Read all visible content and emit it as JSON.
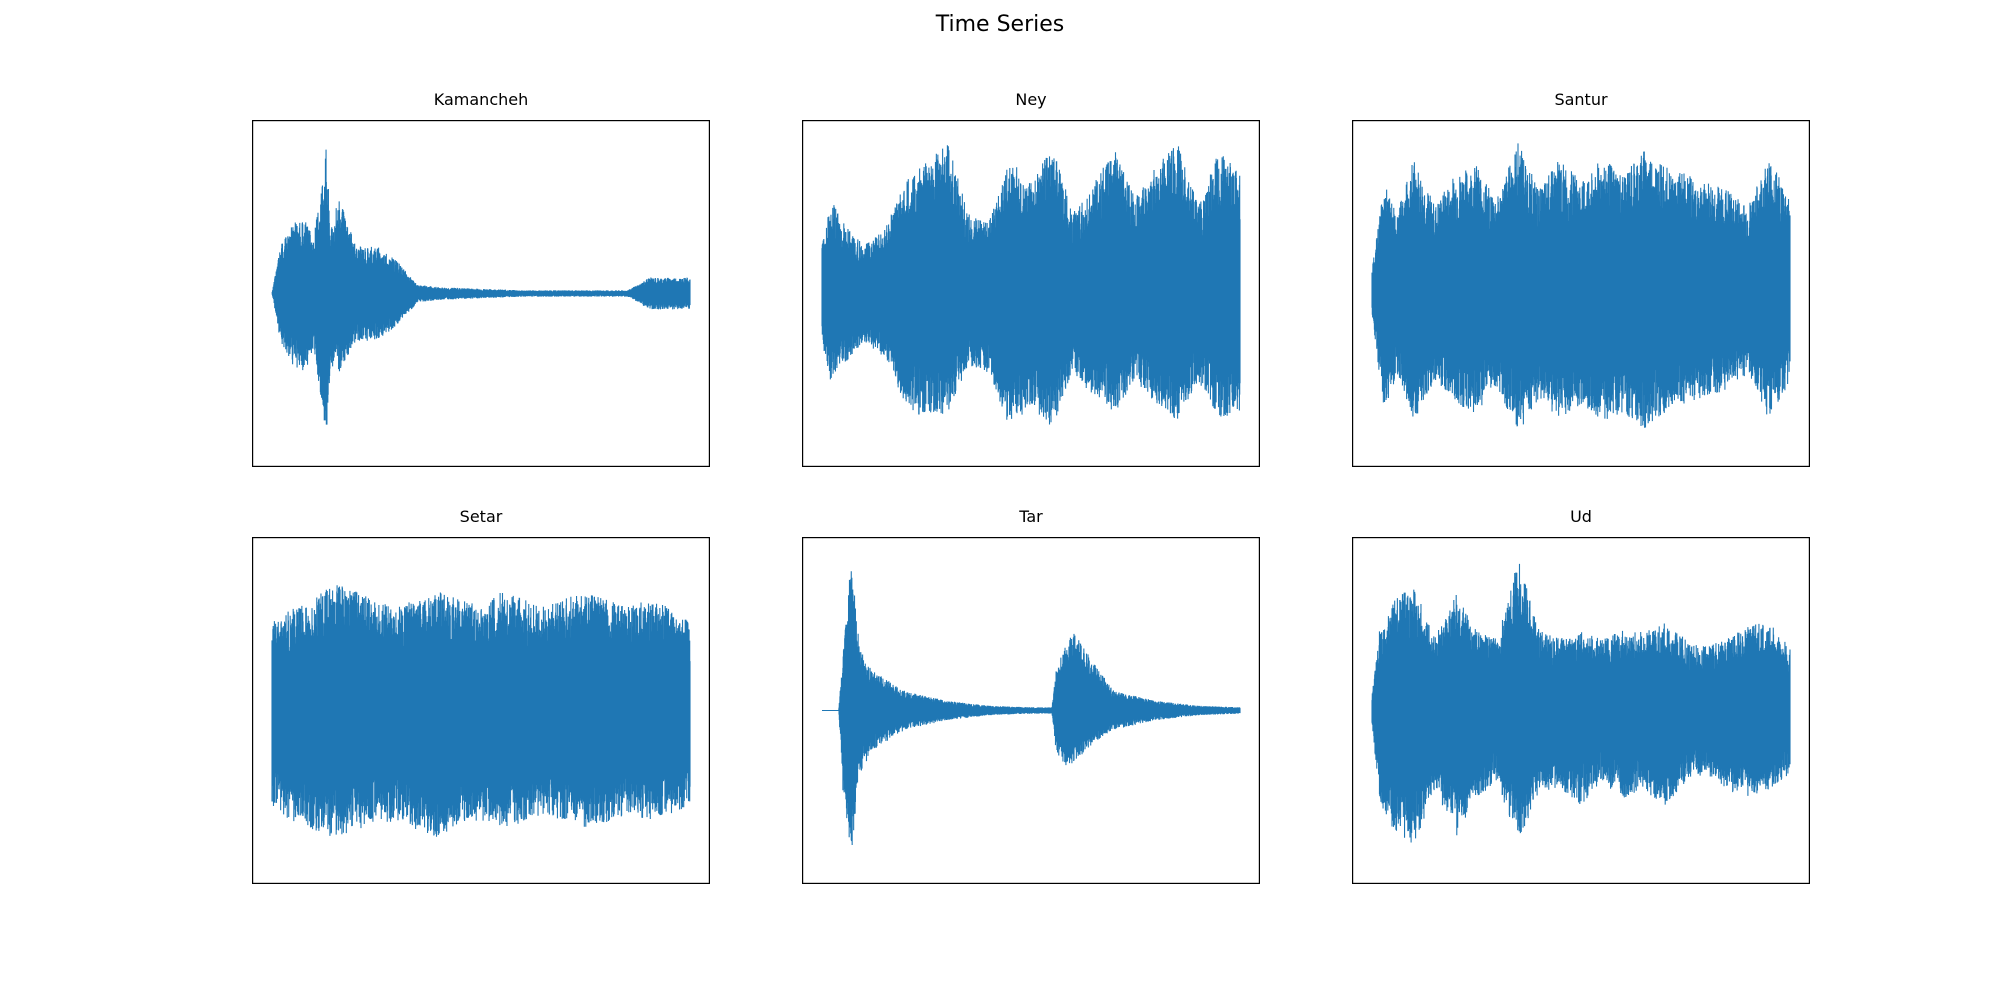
{
  "figure": {
    "title": "Time Series"
  },
  "style": {
    "line_color": "#1f77b4",
    "background": "#ffffff",
    "frame_color": "#000000"
  },
  "chart_data": [
    {
      "type": "line",
      "title": "Kamancheh",
      "axes_visible": false,
      "grid": false,
      "ylim": [
        -1,
        1
      ],
      "envelope": {
        "x": [
          0,
          0.02,
          0.05,
          0.08,
          0.1,
          0.13,
          0.14,
          0.16,
          0.2,
          0.25,
          0.3,
          0.35,
          0.37,
          0.4,
          0.5,
          0.6,
          0.7,
          0.8,
          0.85,
          0.88,
          0.9,
          0.93,
          0.96,
          1.0
        ],
        "upper": [
          0.0,
          0.3,
          0.45,
          0.45,
          0.35,
          0.95,
          0.4,
          0.6,
          0.3,
          0.3,
          0.2,
          0.05,
          0.05,
          0.04,
          0.03,
          0.02,
          0.02,
          0.02,
          0.02,
          0.06,
          0.1,
          0.1,
          0.1,
          0.1
        ],
        "lower": [
          0.0,
          -0.3,
          -0.45,
          -0.5,
          -0.35,
          -0.9,
          -0.45,
          -0.5,
          -0.3,
          -0.3,
          -0.2,
          -0.05,
          -0.05,
          -0.04,
          -0.03,
          -0.02,
          -0.02,
          -0.02,
          -0.02,
          -0.06,
          -0.1,
          -0.1,
          -0.1,
          -0.1
        ]
      }
    },
    {
      "type": "line",
      "title": "Ney",
      "axes_visible": false,
      "grid": false,
      "ylim": [
        -1,
        1
      ],
      "envelope": {
        "x": [
          0,
          0.02,
          0.05,
          0.1,
          0.15,
          0.2,
          0.25,
          0.3,
          0.35,
          0.4,
          0.45,
          0.5,
          0.55,
          0.6,
          0.65,
          0.7,
          0.75,
          0.8,
          0.85,
          0.9,
          0.95,
          1.0
        ],
        "upper": [
          0.3,
          0.6,
          0.45,
          0.3,
          0.4,
          0.7,
          0.85,
          0.95,
          0.5,
          0.45,
          0.85,
          0.7,
          0.95,
          0.5,
          0.7,
          0.9,
          0.6,
          0.8,
          0.95,
          0.55,
          0.9,
          0.75
        ],
        "lower": [
          -0.3,
          -0.55,
          -0.45,
          -0.3,
          -0.4,
          -0.7,
          -0.8,
          -0.75,
          -0.45,
          -0.5,
          -0.85,
          -0.7,
          -0.85,
          -0.5,
          -0.65,
          -0.75,
          -0.55,
          -0.7,
          -0.8,
          -0.55,
          -0.8,
          -0.75
        ]
      }
    },
    {
      "type": "line",
      "title": "Santur",
      "axes_visible": false,
      "grid": false,
      "ylim": [
        -1,
        1
      ],
      "envelope": {
        "x": [
          0,
          0.03,
          0.06,
          0.1,
          0.15,
          0.2,
          0.25,
          0.3,
          0.35,
          0.4,
          0.45,
          0.5,
          0.55,
          0.6,
          0.65,
          0.7,
          0.75,
          0.8,
          0.85,
          0.9,
          0.95,
          1.0
        ],
        "upper": [
          0.15,
          0.7,
          0.5,
          0.85,
          0.55,
          0.75,
          0.8,
          0.6,
          0.95,
          0.65,
          0.85,
          0.7,
          0.85,
          0.75,
          0.9,
          0.8,
          0.75,
          0.7,
          0.65,
          0.55,
          0.85,
          0.6
        ],
        "lower": [
          -0.15,
          -0.75,
          -0.5,
          -0.8,
          -0.55,
          -0.7,
          -0.75,
          -0.6,
          -0.9,
          -0.65,
          -0.8,
          -0.7,
          -0.8,
          -0.75,
          -0.85,
          -0.75,
          -0.7,
          -0.65,
          -0.6,
          -0.5,
          -0.8,
          -0.55
        ]
      }
    },
    {
      "type": "line",
      "title": "Setar",
      "axes_visible": false,
      "grid": false,
      "ylim": [
        -1,
        1
      ],
      "envelope": {
        "x": [
          0,
          0.05,
          0.1,
          0.15,
          0.2,
          0.25,
          0.3,
          0.35,
          0.4,
          0.45,
          0.5,
          0.55,
          0.6,
          0.65,
          0.7,
          0.75,
          0.8,
          0.85,
          0.9,
          0.95,
          1.0
        ],
        "upper": [
          0.55,
          0.65,
          0.7,
          0.8,
          0.75,
          0.7,
          0.65,
          0.7,
          0.75,
          0.7,
          0.65,
          0.75,
          0.7,
          0.65,
          0.7,
          0.75,
          0.7,
          0.65,
          0.7,
          0.65,
          0.55
        ],
        "lower": [
          -0.6,
          -0.7,
          -0.75,
          -0.8,
          -0.75,
          -0.7,
          -0.7,
          -0.75,
          -0.8,
          -0.7,
          -0.7,
          -0.75,
          -0.7,
          -0.65,
          -0.7,
          -0.75,
          -0.7,
          -0.65,
          -0.7,
          -0.65,
          -0.6
        ]
      }
    },
    {
      "type": "line",
      "title": "Tar",
      "axes_visible": false,
      "grid": false,
      "ylim": [
        -1,
        1
      ],
      "envelope": {
        "x": [
          0,
          0.04,
          0.05,
          0.07,
          0.09,
          0.12,
          0.2,
          0.3,
          0.4,
          0.5,
          0.55,
          0.56,
          0.58,
          0.6,
          0.65,
          0.7,
          0.8,
          0.9,
          1.0
        ],
        "upper": [
          0.0,
          0.0,
          0.35,
          0.95,
          0.4,
          0.25,
          0.12,
          0.06,
          0.03,
          0.02,
          0.02,
          0.25,
          0.4,
          0.5,
          0.3,
          0.12,
          0.06,
          0.03,
          0.02
        ],
        "lower": [
          0.0,
          0.0,
          -0.5,
          -0.9,
          -0.4,
          -0.25,
          -0.12,
          -0.06,
          -0.03,
          -0.02,
          -0.02,
          -0.25,
          -0.35,
          -0.35,
          -0.2,
          -0.12,
          -0.06,
          -0.03,
          -0.02
        ]
      }
    },
    {
      "type": "line",
      "title": "Ud",
      "axes_visible": false,
      "grid": false,
      "ylim": [
        -1,
        1
      ],
      "envelope": {
        "x": [
          0,
          0.02,
          0.05,
          0.1,
          0.15,
          0.2,
          0.25,
          0.3,
          0.35,
          0.4,
          0.45,
          0.5,
          0.55,
          0.6,
          0.65,
          0.7,
          0.75,
          0.8,
          0.85,
          0.9,
          0.95,
          1.0
        ],
        "upper": [
          0.1,
          0.55,
          0.7,
          0.8,
          0.45,
          0.75,
          0.5,
          0.45,
          0.95,
          0.5,
          0.45,
          0.5,
          0.45,
          0.5,
          0.5,
          0.55,
          0.45,
          0.4,
          0.45,
          0.55,
          0.55,
          0.4
        ],
        "lower": [
          -0.1,
          -0.6,
          -0.75,
          -0.85,
          -0.5,
          -0.8,
          -0.55,
          -0.45,
          -0.85,
          -0.5,
          -0.5,
          -0.6,
          -0.45,
          -0.55,
          -0.5,
          -0.6,
          -0.45,
          -0.4,
          -0.5,
          -0.55,
          -0.5,
          -0.4
        ]
      }
    }
  ]
}
